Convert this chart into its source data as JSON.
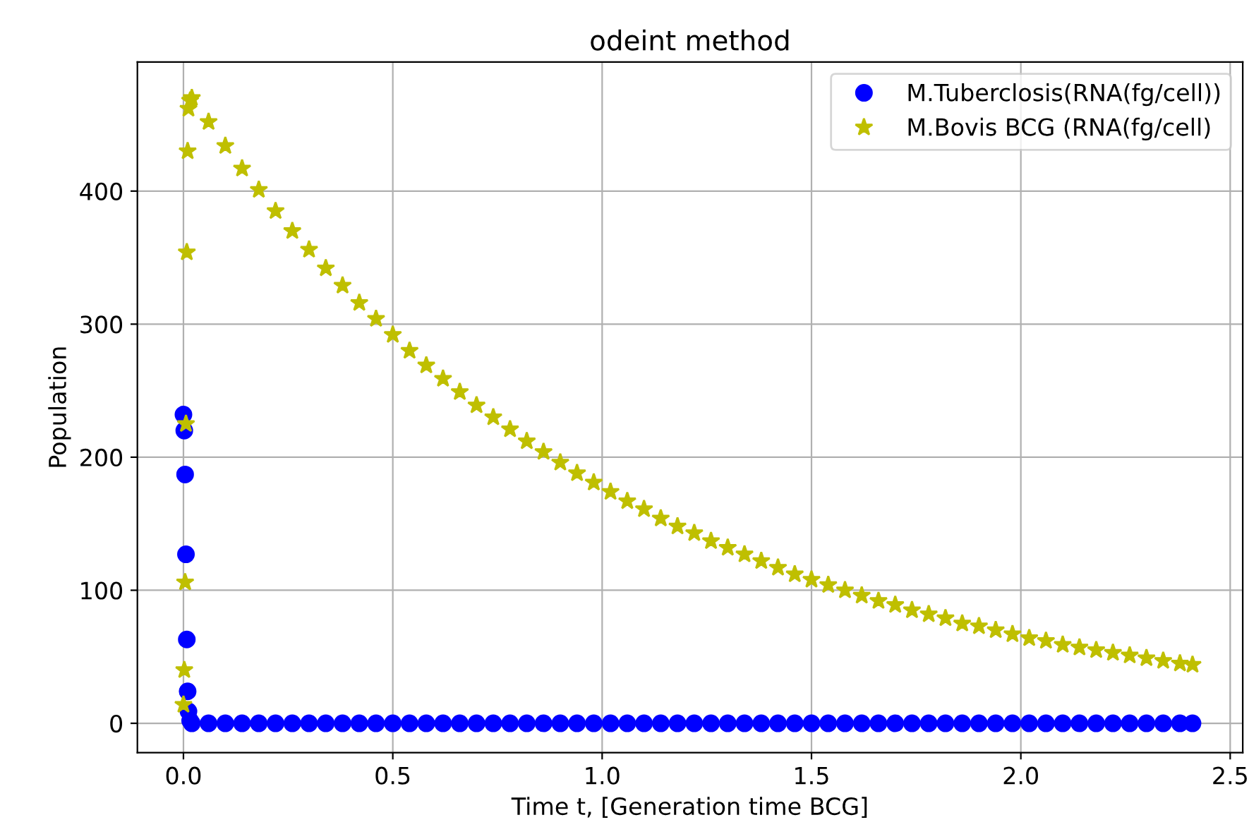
{
  "chart_data": {
    "type": "scatter",
    "title": "odeint method",
    "xlabel": "Time t, [Generation time BCG]",
    "ylabel": "Population",
    "xlim": [
      -0.11,
      2.53
    ],
    "ylim": [
      -22,
      497
    ],
    "xticks": [
      {
        "value": 0,
        "label": "0.0"
      },
      {
        "value": 0.5,
        "label": "0.5"
      },
      {
        "value": 1,
        "label": "1.0"
      },
      {
        "value": 1.5,
        "label": "1.5"
      },
      {
        "value": 2,
        "label": "2.0"
      },
      {
        "value": 2.5,
        "label": "2.5"
      }
    ],
    "yticks": [
      0,
      100,
      200,
      300,
      400
    ],
    "grid": true,
    "legend": "top right",
    "series": [
      {
        "name": "M.Tuberclosis(RNA(fg/cell))",
        "color": "#0000ff",
        "marker": "circle",
        "x": [
          0,
          0.002,
          0.004,
          0.006,
          0.008,
          0.01,
          0.012,
          0.016,
          0.02,
          0.06,
          0.1,
          0.14,
          0.18,
          0.22,
          0.26,
          0.3,
          0.34,
          0.38,
          0.42,
          0.46,
          0.5,
          0.54,
          0.58,
          0.62,
          0.66,
          0.7,
          0.74,
          0.78,
          0.82,
          0.86,
          0.9,
          0.94,
          0.98,
          1.02,
          1.06,
          1.1,
          1.14,
          1.18,
          1.22,
          1.26,
          1.3,
          1.34,
          1.38,
          1.42,
          1.46,
          1.5,
          1.54,
          1.58,
          1.62,
          1.66,
          1.7,
          1.74,
          1.78,
          1.82,
          1.86,
          1.9,
          1.94,
          1.98,
          2.02,
          2.06,
          2.1,
          2.14,
          2.18,
          2.22,
          2.26,
          2.3,
          2.34,
          2.38,
          2.41
        ],
        "values": [
          232,
          220,
          187,
          127,
          63,
          24,
          9,
          2,
          0,
          0,
          0,
          0,
          0,
          0,
          0,
          0,
          0,
          0,
          0,
          0,
          0,
          0,
          0,
          0,
          0,
          0,
          0,
          0,
          0,
          0,
          0,
          0,
          0,
          0,
          0,
          0,
          0,
          0,
          0,
          0,
          0,
          0,
          0,
          0,
          0,
          0,
          0,
          0,
          0,
          0,
          0,
          0,
          0,
          0,
          0,
          0,
          0,
          0,
          0,
          0,
          0,
          0,
          0,
          0,
          0,
          0,
          0,
          0,
          0
        ]
      },
      {
        "name": "M.Bovis BCG (RNA(fg/cell)",
        "color": "#bfbf00",
        "marker": "star",
        "x": [
          0,
          0.002,
          0.004,
          0.006,
          0.008,
          0.01,
          0.012,
          0.016,
          0.02,
          0.06,
          0.1,
          0.14,
          0.18,
          0.22,
          0.26,
          0.3,
          0.34,
          0.38,
          0.42,
          0.46,
          0.5,
          0.54,
          0.58,
          0.62,
          0.66,
          0.7,
          0.74,
          0.78,
          0.82,
          0.86,
          0.9,
          0.94,
          0.98,
          1.02,
          1.06,
          1.1,
          1.14,
          1.18,
          1.22,
          1.26,
          1.3,
          1.34,
          1.38,
          1.42,
          1.46,
          1.5,
          1.54,
          1.58,
          1.62,
          1.66,
          1.7,
          1.74,
          1.78,
          1.82,
          1.86,
          1.9,
          1.94,
          1.98,
          2.02,
          2.06,
          2.1,
          2.14,
          2.18,
          2.22,
          2.26,
          2.3,
          2.34,
          2.38,
          2.41
        ],
        "values": [
          14,
          40,
          106,
          225,
          354,
          430,
          462,
          468,
          470,
          452,
          434,
          417,
          401,
          385,
          370,
          356,
          342,
          329,
          316,
          304,
          292,
          280,
          269,
          259,
          249,
          239,
          230,
          221,
          212,
          204,
          196,
          188,
          181,
          174,
          167,
          161,
          154,
          148,
          143,
          137,
          132,
          127,
          122,
          117,
          112,
          108,
          104,
          100,
          96,
          92,
          89,
          85,
          82,
          79,
          75,
          73,
          70,
          67,
          64,
          62,
          59,
          57,
          55,
          53,
          51,
          49,
          47,
          45,
          44
        ]
      }
    ]
  }
}
